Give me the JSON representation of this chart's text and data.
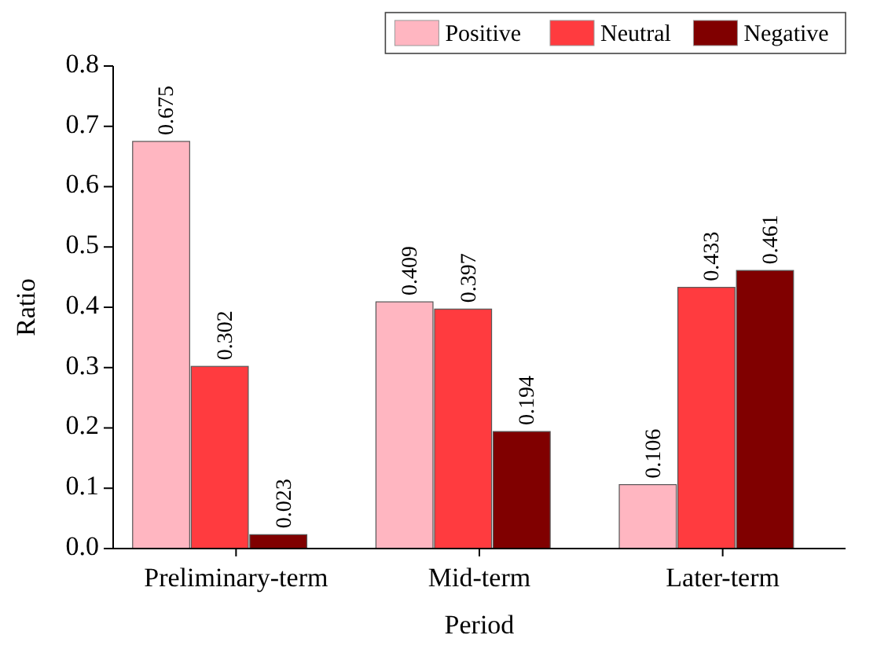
{
  "chart_data": {
    "type": "bar",
    "xlabel": "Period",
    "ylabel": "Ratio",
    "categories": [
      "Preliminary-term",
      "Mid-term",
      "Later-term"
    ],
    "series": [
      {
        "name": "Positive",
        "color": "#ffb6c1",
        "values": [
          0.675,
          0.409,
          0.106
        ]
      },
      {
        "name": "Neutral",
        "color": "#ff3b3f",
        "values": [
          0.302,
          0.397,
          0.433
        ]
      },
      {
        "name": "Negative",
        "color": "#800000",
        "values": [
          0.023,
          0.194,
          0.461
        ]
      }
    ],
    "ylim": [
      0,
      0.8
    ],
    "yticks": [
      {
        "value": 0,
        "label": "0.0"
      },
      0.1,
      0.2,
      0.3,
      0.4,
      0.5,
      0.6,
      0.7,
      0.8
    ],
    "data_labels": true,
    "legend": "top right",
    "grid": false
  }
}
